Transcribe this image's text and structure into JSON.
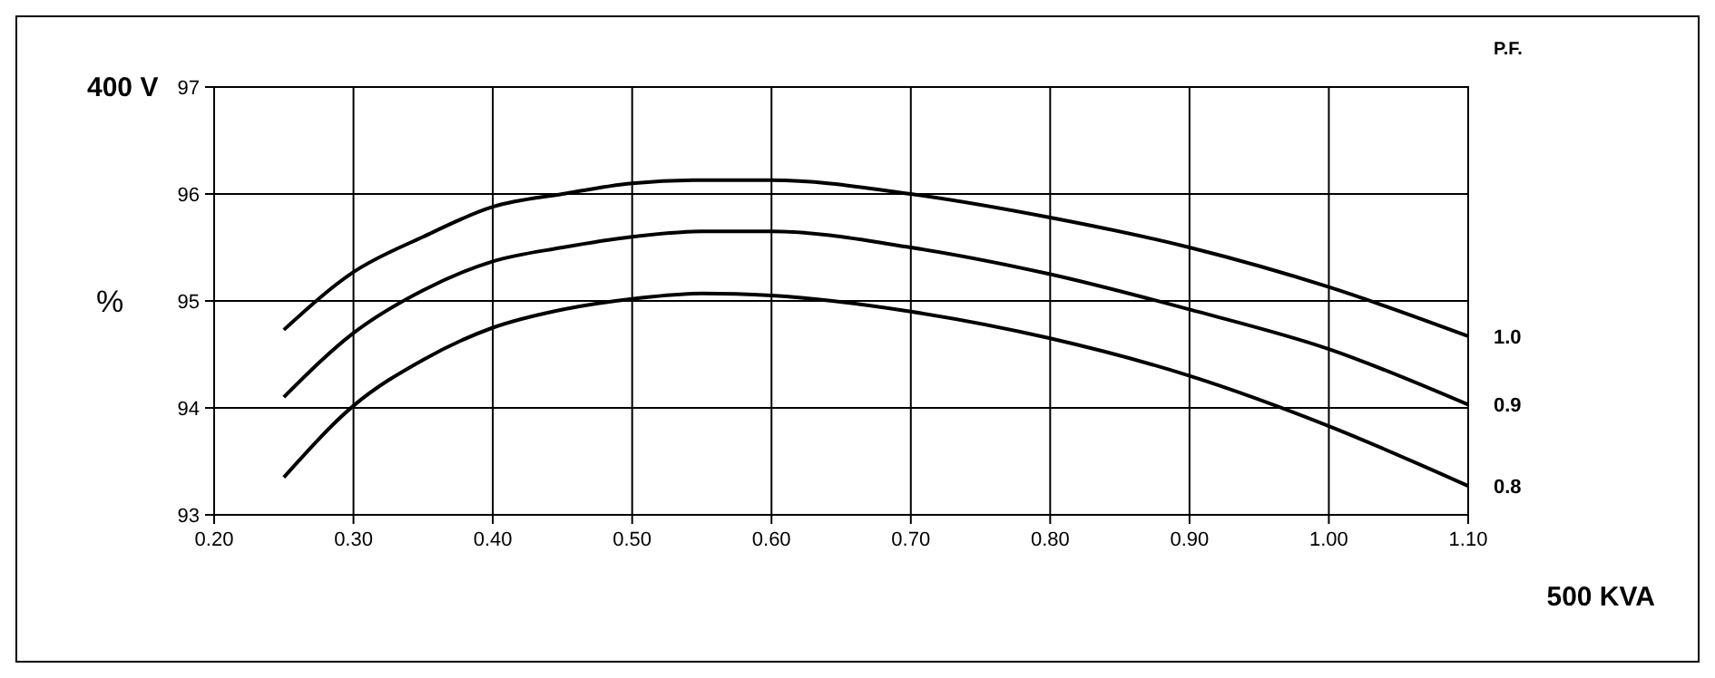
{
  "chart_data": {
    "type": "line",
    "title": "400 V",
    "ylabel": "%",
    "xlabel": "500 KVA",
    "legend_title": "P.F.",
    "x": [
      0.25,
      0.3,
      0.35,
      0.4,
      0.45,
      0.5,
      0.55,
      0.6,
      0.7,
      0.8,
      0.9,
      1.0,
      1.1
    ],
    "series": [
      {
        "name": "1.0",
        "color": "#000000",
        "values": [
          94.73,
          95.27,
          95.6,
          95.88,
          96.0,
          96.1,
          96.13,
          96.13,
          96.0,
          95.78,
          95.5,
          95.13,
          94.67
        ]
      },
      {
        "name": "0.9",
        "color": "#000000",
        "values": [
          94.1,
          94.7,
          95.1,
          95.37,
          95.5,
          95.6,
          95.65,
          95.65,
          95.5,
          95.25,
          94.92,
          94.55,
          94.03
        ]
      },
      {
        "name": "0.8",
        "color": "#000000",
        "values": [
          93.35,
          94.02,
          94.45,
          94.75,
          94.92,
          95.02,
          95.07,
          95.05,
          94.9,
          94.65,
          94.3,
          93.83,
          93.27
        ]
      }
    ],
    "xlim": [
      0.2,
      1.1
    ],
    "xticks": [
      {
        "value": 0.2,
        "label": "0.20"
      },
      {
        "value": 0.3,
        "label": "0.30"
      },
      {
        "value": 0.4,
        "label": "0.40"
      },
      {
        "value": 0.5,
        "label": "0.50"
      },
      {
        "value": 0.6,
        "label": "0.60"
      },
      {
        "value": 0.7,
        "label": "0.70"
      },
      {
        "value": 0.8,
        "label": "0.80"
      },
      {
        "value": 0.9,
        "label": "0.90"
      },
      {
        "value": 1.0,
        "label": "1.00"
      },
      {
        "value": 1.1,
        "label": "1.10"
      }
    ],
    "ylim": [
      93,
      97
    ],
    "yticks": [
      93,
      94,
      95,
      96,
      97
    ],
    "grid": true,
    "marker": "none",
    "line_style": "solid"
  }
}
